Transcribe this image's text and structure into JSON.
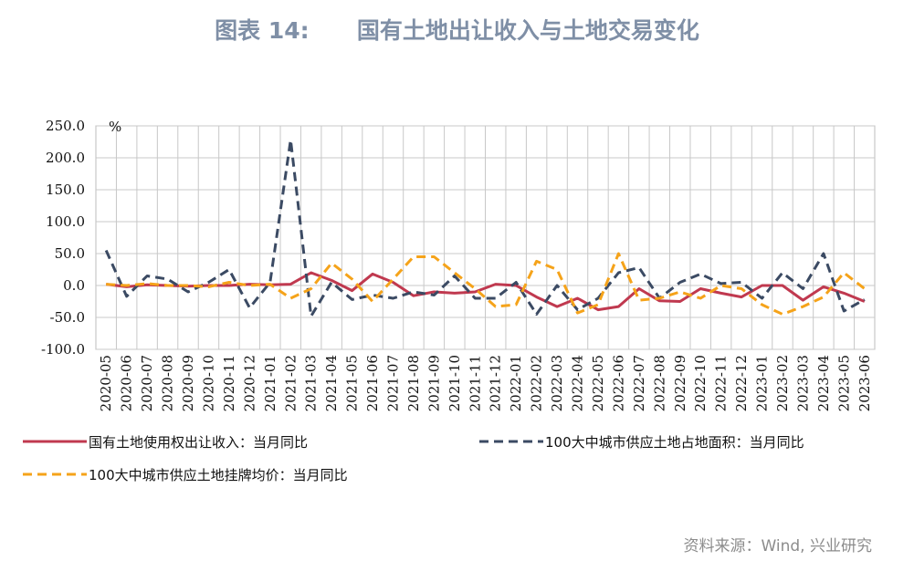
{
  "title": "图表 14:      国有土地出让收入与土地交易变化",
  "source": "资料来源：Wind, 兴业研究",
  "chart_data": {
    "type": "line",
    "unit_label": "%",
    "ylim": [
      -100,
      250
    ],
    "yticks": [
      "250.0",
      "200.0",
      "150.0",
      "100.0",
      "50.0",
      "0.0",
      "-50.0",
      "-100.0"
    ],
    "ytick_values": [
      250,
      200,
      150,
      100,
      50,
      0,
      -50,
      -100
    ],
    "grid": true,
    "legend_position": "bottom",
    "categories": [
      "2020-05",
      "2020-06",
      "2020-07",
      "2020-08",
      "2020-09",
      "2020-10",
      "2020-11",
      "2020-12",
      "2021-01",
      "2021-02",
      "2021-03",
      "2021-04",
      "2021-05",
      "2021-06",
      "2021-07",
      "2021-08",
      "2021-09",
      "2021-10",
      "2021-11",
      "2021-12",
      "2022-01",
      "2022-02",
      "2022-03",
      "2022-04",
      "2022-05",
      "2022-06",
      "2022-07",
      "2022-08",
      "2022-09",
      "2022-10",
      "2022-11",
      "2022-12",
      "2023-01",
      "2023-02",
      "2023-03",
      "2023-04",
      "2023-05",
      "2023-06"
    ],
    "series": [
      {
        "name": "国有土地使用权出让收入：当月同比",
        "color": "#c0394f",
        "style": "solid",
        "values": [
          2,
          -2,
          1,
          0,
          -1,
          0,
          0,
          2,
          1,
          2,
          20,
          8,
          -8,
          18,
          5,
          -16,
          -10,
          -12,
          -10,
          2,
          0,
          -18,
          -33,
          -20,
          -38,
          -33,
          -5,
          -24,
          -25,
          -5,
          -12,
          -18,
          0,
          0,
          -23,
          -2,
          -12,
          -25
        ]
      },
      {
        "name": "100大中城市供应土地占地面积：当月同比",
        "color": "#3b4a63",
        "style": "dashed",
        "values": [
          55,
          -17,
          15,
          10,
          -10,
          5,
          25,
          -35,
          5,
          228,
          -48,
          5,
          -22,
          -15,
          -20,
          -10,
          -15,
          15,
          -20,
          -20,
          5,
          -45,
          0,
          -38,
          -20,
          20,
          28,
          -20,
          5,
          18,
          3,
          5,
          -20,
          20,
          -5,
          50,
          -40,
          -22
        ]
      },
      {
        "name": "100大中城市供应土地挂牌均价：当月同比",
        "color": "#f5a31a",
        "style": "dashed",
        "values": [
          2,
          0,
          3,
          0,
          0,
          -2,
          5,
          0,
          2,
          -20,
          -5,
          35,
          10,
          -25,
          10,
          45,
          45,
          20,
          -5,
          -33,
          -30,
          38,
          25,
          -43,
          -30,
          50,
          -23,
          -20,
          -10,
          -20,
          0,
          -5,
          -30,
          -45,
          -33,
          -18,
          20,
          -5
        ]
      }
    ]
  }
}
